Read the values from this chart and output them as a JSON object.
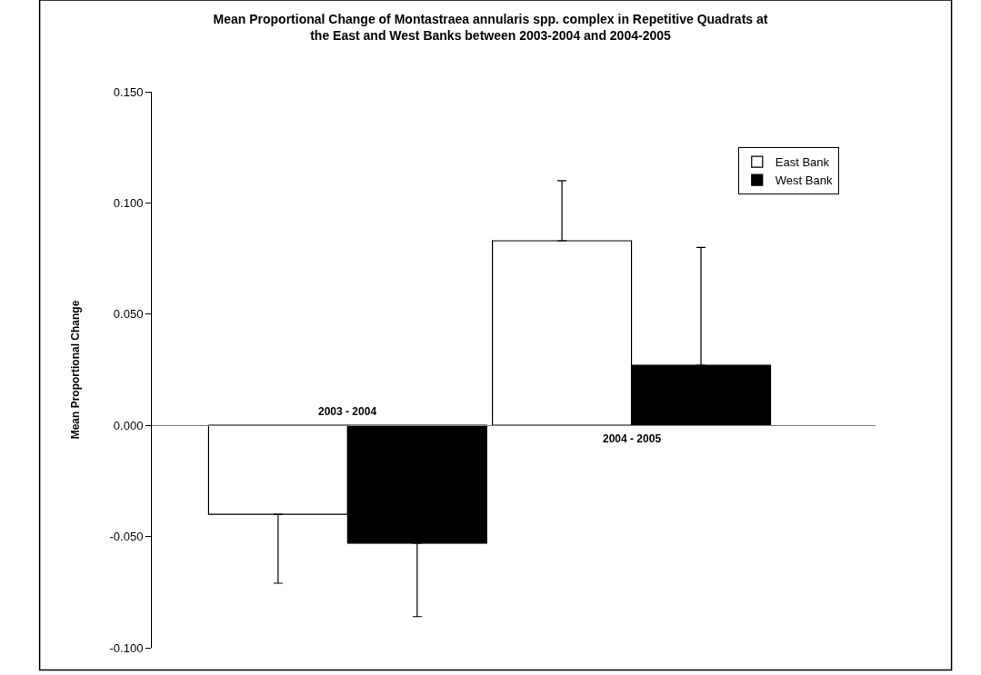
{
  "chart_data": {
    "type": "bar",
    "title": "Mean Proportional Change of Montastraea annularis spp. complex in Repetitive Quadrats at\nthe East and West Banks between 2003-2004 and 2004-2005",
    "ylabel": "Mean Proportional Change",
    "categories": [
      "2003 - 2004",
      "2004 - 2005"
    ],
    "series": [
      {
        "name": "East Bank",
        "color": "#ffffff",
        "values": [
          -0.04,
          0.083
        ],
        "errors": [
          [
            -0.071,
            -0.04
          ],
          [
            0.083,
            0.11
          ]
        ]
      },
      {
        "name": "West Bank",
        "color": "#000000",
        "values": [
          -0.053,
          0.027
        ],
        "errors": [
          [
            -0.086,
            -0.053
          ],
          [
            0.027,
            0.08
          ]
        ]
      }
    ],
    "ylim": [
      -0.1,
      0.15
    ],
    "yticks": [
      {
        "value": -0.1,
        "label": "-0.100"
      },
      {
        "value": -0.05,
        "label": "-0.050"
      },
      {
        "value": 0,
        "label": "0.000"
      },
      {
        "value": 0.05,
        "label": "0.050"
      },
      {
        "value": 0.1,
        "label": "0.100"
      },
      {
        "value": 0.15,
        "label": "0.150"
      }
    ],
    "legend": "top right"
  }
}
